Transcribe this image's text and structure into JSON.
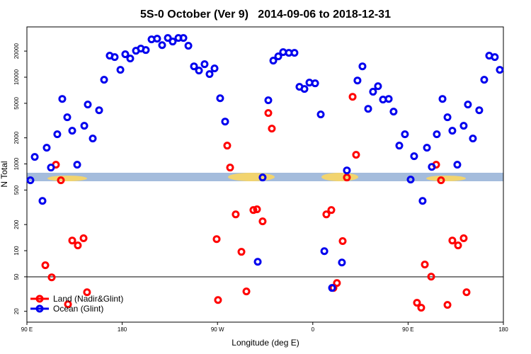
{
  "chart_data": {
    "type": "scatter",
    "title": "5S-0 October (Ver 9)   2014-09-06 to 2018-12-31",
    "x_label": "Longitude (deg E)",
    "y_label": "N Total",
    "xlim": [
      90,
      540
    ],
    "xticks": [
      {
        "value": 90,
        "label": "90 E"
      },
      {
        "value": 180,
        "label": "180"
      },
      {
        "value": 270,
        "label": "90 W"
      },
      {
        "value": 360,
        "label": "0"
      },
      {
        "value": 450,
        "label": "90 E"
      },
      {
        "value": 540,
        "label": "180"
      }
    ],
    "ylim": [
      15,
      38000
    ],
    "log_y": true,
    "yticks": [
      20,
      50,
      100,
      200,
      500,
      1000,
      2000,
      5000,
      10000,
      20000
    ],
    "reference_line": 50,
    "legend": "bottom-left",
    "series": [
      {
        "name": "Land (Nadir&Glint)",
        "color": "#ff0000",
        "x": [
          117.4,
          122.1,
          107.4,
          113.4,
          128.8,
          132.8,
          138.1,
          143.5,
          146.8,
          269.2,
          270.5,
          279.2,
          281.9,
          287.2,
          292.6,
          297.3,
          303.9,
          307.3,
          312.6,
          318.0,
          321.3,
          372.8,
          377.5,
          379.5,
          382.8,
          388.2,
          392.2,
          397.6,
          400.9,
          458.4,
          462.4,
          465.8,
          471.8,
          476.5,
          481.1,
          487.2,
          491.8,
          497.2,
          502.5,
          505.2
        ],
        "values": [
          980,
          648,
          67.9,
          49.3,
          24.1,
          131,
          115,
          139,
          33.2,
          136,
          27.0,
          1626,
          908,
          262,
          97,
          33.9,
          294,
          300,
          218,
          3862,
          2554,
          262,
          294,
          37.2,
          42.4,
          129,
          698,
          5946,
          1274,
          25.1,
          22.0,
          69.2,
          50.2,
          980,
          648,
          23.7,
          131,
          115,
          139,
          33.2
        ]
      },
      {
        "name": "Ocean (Glint)",
        "color": "#0000ee",
        "x": [
          93.3,
          97.4,
          104.7,
          108.7,
          112.7,
          118.7,
          123.4,
          128.1,
          132.8,
          137.5,
          144.2,
          147.5,
          152.2,
          158.2,
          162.9,
          168.2,
          172.9,
          178.3,
          182.9,
          187.6,
          193.0,
          197.6,
          202.3,
          207.7,
          213.0,
          217.7,
          223.1,
          227.7,
          233.1,
          237.8,
          242.5,
          247.8,
          252.5,
          257.8,
          262.5,
          267.2,
          272.5,
          277.2,
          308.0,
          312.6,
          318.0,
          322.7,
          327.4,
          332.0,
          337.4,
          342.7,
          347.4,
          352.1,
          356.8,
          362.2,
          367.5,
          370.9,
          378.2,
          387.5,
          392.2,
          402.2,
          406.9,
          412.3,
          416.9,
          421.6,
          426.3,
          431.7,
          436.3,
          441.7,
          447.0,
          452.4,
          455.7,
          463.7,
          467.8,
          472.4,
          477.1,
          482.5,
          487.2,
          491.8,
          496.5,
          502.5,
          506.5,
          511.2,
          517.2,
          521.9,
          526.6,
          531.9,
          536.6
        ],
        "values": [
          648,
          1204,
          375,
          1538,
          908,
          2198,
          5620,
          3452,
          2416,
          980,
          2754,
          4840,
          1964,
          4160,
          9340,
          17700,
          17060,
          12160,
          18380,
          16420,
          20180,
          21380,
          20560,
          27280,
          27800,
          23440,
          28320,
          25760,
          28320,
          28320,
          23020,
          13340,
          11940,
          14120,
          10860,
          12620,
          5720,
          3080,
          74.5,
          698,
          5420,
          15520,
          17380,
          19440,
          19100,
          19100,
          7740,
          7320,
          8660,
          8500,
          3720,
          98.8,
          37.2,
          73.1,
          842,
          9160,
          13340,
          4320,
          6800,
          7880,
          5520,
          5620,
          4010,
          1626,
          2198,
          660,
          1228,
          375,
          1538,
          925,
          2198,
          5620,
          3452,
          2416,
          980,
          2754,
          4840,
          1964,
          4160,
          9340,
          17700,
          17060,
          12160
        ]
      }
    ]
  }
}
